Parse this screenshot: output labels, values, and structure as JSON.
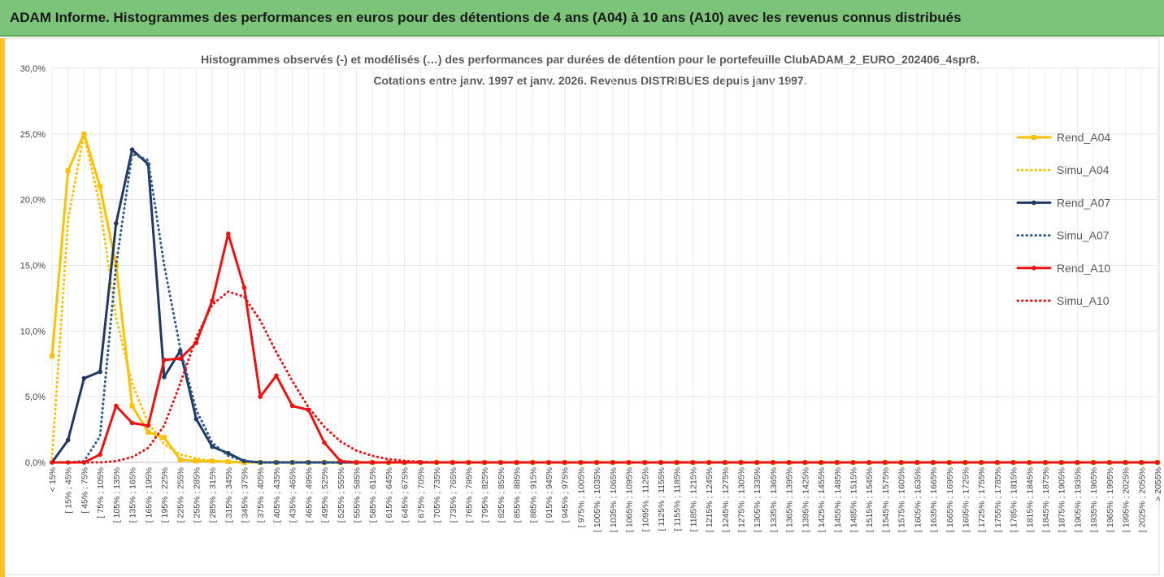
{
  "header": "ADAM Informe. Histogrammes des performances en euros pour des détentions de 4 ans (A04) à 10 ans (A10) avec les revenus connus distribués",
  "chart_data": {
    "type": "line",
    "title": [
      "Histogrammes observés (-) et modélisés (…) des performances par durées de détention pour le portefeuille ClubADAM_2_EURO_202406_4spr8.",
      "Cotations entre janv. 1997 et janv. 2026. Revenus DISTRIBUES depuis janv 1997."
    ],
    "categories": [
      "< 15%",
      "[ 15% ; 45%",
      "[ 45% ; 75%",
      "[ 75% ; 105%",
      "[ 105% ; 135%",
      "[ 135% ; 165%",
      "[ 165% ; 195%",
      "[ 195% ; 225%",
      "[ 225% ; 255%",
      "[ 255% ; 285%",
      "[ 285% ; 315%",
      "[ 315% ; 345%",
      "[ 345% ; 375%",
      "[ 375% ; 405%",
      "[ 405% ; 435%",
      "[ 435% ; 465%",
      "[ 465% ; 495%",
      "[ 495% ; 525%",
      "[ 525% ; 555%",
      "[ 555% ; 585%",
      "[ 585% ; 615%",
      "[ 615% ; 645%",
      "[ 645% ; 675%",
      "[ 675% ; 705%",
      "[ 705% ; 735%",
      "[ 735% ; 765%",
      "[ 765% ; 795%",
      "[ 795% ; 825%",
      "[ 825% ; 855%",
      "[ 855% ; 885%",
      "[ 885% ; 915%",
      "[ 915% ; 945%",
      "[ 945% ; 975%",
      "[ 975% ; 1005%",
      "[ 1005% ; 1035%",
      "[ 1035% ; 1065%",
      "[ 1065% ; 1095%",
      "[ 1095% ; 1125%",
      "[ 1125% ; 1155%",
      "[ 1155% ; 1185%",
      "[ 1185% ; 1215%",
      "[ 1215% ; 1245%",
      "[ 1245% ; 1275%",
      "[ 1275% ; 1305%",
      "[ 1305% ; 1335%",
      "[ 1335% ; 1365%",
      "[ 1365% ; 1395%",
      "[ 1395% ; 1425%",
      "[ 1425% ; 1455%",
      "[ 1455% ; 1485%",
      "[ 1485% ; 1515%",
      "[ 1515% ; 1545%",
      "[ 1545% ; 1575%",
      "[ 1575% ; 1605%",
      "[ 1605% ; 1635%",
      "[ 1635% ; 1665%",
      "[ 1665% ; 1695%",
      "[ 1695% ; 1725%",
      "[ 1725% ; 1755%",
      "[ 1755% ; 1785%",
      "[ 1785% ; 1815%",
      "[ 1815% ; 1845%",
      "[ 1845% ; 1875%",
      "[ 1875% ; 1905%",
      "[ 1905% ; 1935%",
      "[ 1935% ; 1965%",
      "[ 1965% ; 1995%",
      "[ 1995% ; 2025%",
      "[ 2025% ; 2055%",
      "> 2055%"
    ],
    "series": [
      {
        "name": "Rend_A04",
        "color": "#ffc000",
        "style": "solid",
        "marker": "square",
        "values": [
          8.1,
          22.2,
          25.0,
          21.0,
          15.0,
          4.3,
          2.3,
          1.9,
          0.2,
          0.1,
          0.1,
          0.05,
          0,
          0,
          0,
          0,
          0,
          0,
          0,
          0,
          0,
          0,
          0,
          0,
          0,
          0,
          0,
          0,
          0,
          0,
          0,
          0,
          0,
          0,
          0,
          0,
          0,
          0,
          0,
          0,
          0,
          0,
          0,
          0,
          0,
          0,
          0,
          0,
          0,
          0,
          0,
          0,
          0,
          0,
          0,
          0,
          0,
          0,
          0,
          0,
          0,
          0,
          0,
          0,
          0,
          0,
          0,
          0,
          0,
          0
        ]
      },
      {
        "name": "Simu_A04",
        "color": "#ffc000",
        "style": "dotted",
        "marker": "none",
        "values": [
          0.3,
          18.5,
          25.0,
          19.5,
          11.0,
          6.0,
          3.0,
          1.4,
          0.6,
          0.3,
          0.1,
          0.05,
          0,
          0,
          0,
          0,
          0,
          0,
          0,
          0,
          0,
          0,
          0,
          0,
          0,
          0,
          0,
          0,
          0,
          0,
          0,
          0,
          0,
          0,
          0,
          0,
          0,
          0,
          0,
          0,
          0,
          0,
          0,
          0,
          0,
          0,
          0,
          0,
          0,
          0,
          0,
          0,
          0,
          0,
          0,
          0,
          0,
          0,
          0,
          0,
          0,
          0,
          0,
          0,
          0,
          0,
          0,
          0,
          0,
          0
        ]
      },
      {
        "name": "Rend_A07",
        "color": "#1f3864",
        "style": "solid",
        "marker": "circle",
        "values": [
          0,
          1.7,
          6.4,
          6.9,
          18.2,
          23.8,
          22.7,
          6.5,
          8.5,
          3.3,
          1.2,
          0.7,
          0.1,
          0,
          0,
          0,
          0,
          0,
          0,
          0,
          0,
          0,
          0,
          0,
          0,
          0,
          0,
          0,
          0,
          0,
          0,
          0,
          0,
          0,
          0,
          0,
          0,
          0,
          0,
          0,
          0,
          0,
          0,
          0,
          0,
          0,
          0,
          0,
          0,
          0,
          0,
          0,
          0,
          0,
          0,
          0,
          0,
          0,
          0,
          0,
          0,
          0,
          0,
          0,
          0,
          0,
          0,
          0,
          0,
          0
        ]
      },
      {
        "name": "Simu_A07",
        "color": "#2e5a88",
        "style": "dotted",
        "marker": "none",
        "values": [
          0,
          0,
          0.1,
          2.0,
          15.0,
          23.5,
          23.0,
          15.0,
          8.7,
          4.0,
          1.5,
          0.5,
          0.1,
          0,
          0,
          0,
          0,
          0,
          0,
          0,
          0,
          0,
          0,
          0,
          0,
          0,
          0,
          0,
          0,
          0,
          0,
          0,
          0,
          0,
          0,
          0,
          0,
          0,
          0,
          0,
          0,
          0,
          0,
          0,
          0,
          0,
          0,
          0,
          0,
          0,
          0,
          0,
          0,
          0,
          0,
          0,
          0,
          0,
          0,
          0,
          0,
          0,
          0,
          0,
          0,
          0,
          0,
          0,
          0,
          0
        ]
      },
      {
        "name": "Rend_A10",
        "color": "#ee1111",
        "style": "solid",
        "marker": "circle",
        "values": [
          0,
          0,
          0,
          0.6,
          4.3,
          3.0,
          2.8,
          7.8,
          7.9,
          9.1,
          12.3,
          17.4,
          13.3,
          5.0,
          6.6,
          4.3,
          4.0,
          1.5,
          0.1,
          0,
          0,
          0,
          0,
          0,
          0,
          0,
          0,
          0,
          0,
          0,
          0,
          0,
          0,
          0,
          0,
          0,
          0,
          0,
          0,
          0,
          0,
          0,
          0,
          0,
          0,
          0,
          0,
          0,
          0,
          0,
          0,
          0,
          0,
          0,
          0,
          0,
          0,
          0,
          0,
          0,
          0,
          0,
          0,
          0,
          0,
          0,
          0,
          0,
          0,
          0
        ]
      },
      {
        "name": "Simu_A10",
        "color": "#ee1111",
        "style": "dotted",
        "marker": "none",
        "values": [
          0,
          0,
          0,
          0,
          0.1,
          0.4,
          1.1,
          2.8,
          6.0,
          9.5,
          12.0,
          13.0,
          12.6,
          10.8,
          8.4,
          6.2,
          4.2,
          2.7,
          1.6,
          0.9,
          0.5,
          0.25,
          0.12,
          0.05,
          0,
          0,
          0,
          0,
          0,
          0,
          0,
          0,
          0,
          0,
          0,
          0,
          0,
          0,
          0,
          0,
          0,
          0,
          0,
          0,
          0,
          0,
          0,
          0,
          0,
          0,
          0,
          0,
          0,
          0,
          0,
          0,
          0,
          0,
          0,
          0,
          0,
          0,
          0,
          0,
          0,
          0,
          0,
          0,
          0,
          0
        ]
      }
    ],
    "ylim": [
      0,
      30
    ],
    "yticks": [
      {
        "value": 0,
        "label": "0,0%"
      },
      {
        "value": 5,
        "label": "5,0%"
      },
      {
        "value": 10,
        "label": "10,0%"
      },
      {
        "value": 15,
        "label": "15,0%"
      },
      {
        "value": 20,
        "label": "20,0%"
      },
      {
        "value": 25,
        "label": "25,0%"
      },
      {
        "value": 30,
        "label": "30,0%"
      }
    ],
    "grid": true,
    "legend": "right"
  }
}
